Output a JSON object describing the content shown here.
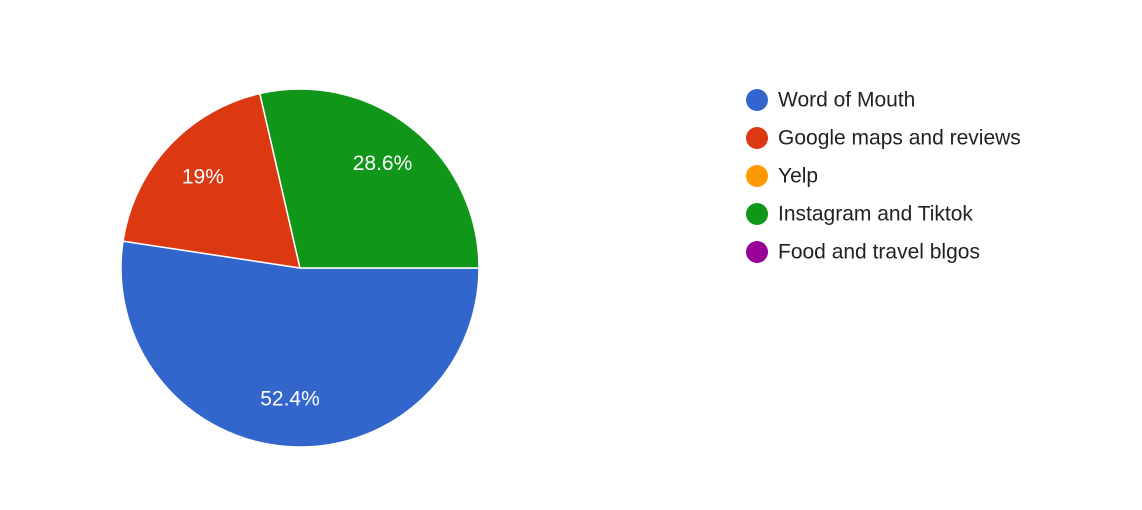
{
  "chart_data": {
    "type": "pie",
    "categories": [
      "Word of Mouth",
      "Google maps and reviews",
      "Yelp",
      "Instagram and Tiktok",
      "Food and travel blgos"
    ],
    "values": [
      52.4,
      19,
      0,
      28.6,
      0
    ],
    "value_labels": [
      "52.4%",
      "19%",
      null,
      "28.6%",
      null
    ],
    "colors": [
      "#3366cc",
      "#dc3912",
      "#ff9900",
      "#109618",
      "#990099"
    ],
    "legend": "right"
  }
}
